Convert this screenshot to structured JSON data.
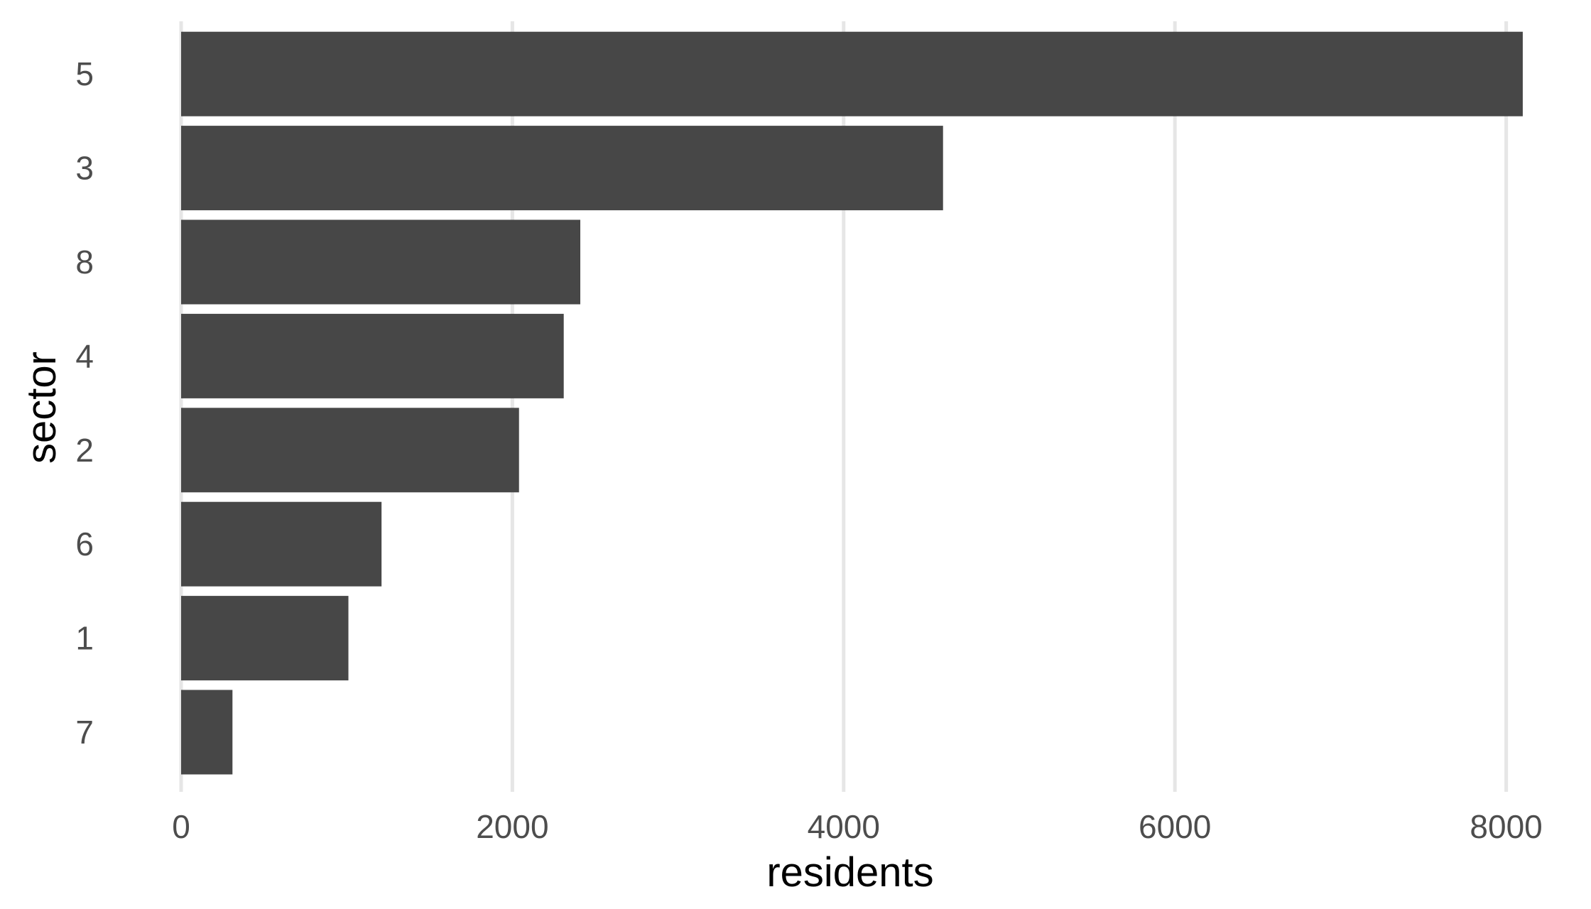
{
  "chart_data": {
    "type": "bar",
    "orientation": "horizontal",
    "categories": [
      "5",
      "3",
      "8",
      "4",
      "2",
      "6",
      "1",
      "7"
    ],
    "values": [
      8100,
      4600,
      2410,
      2310,
      2040,
      1210,
      1010,
      310
    ],
    "xlabel": "residents",
    "ylabel": "sector",
    "xlim": [
      0,
      8500
    ],
    "xticks": [
      0,
      2000,
      4000,
      6000,
      8000
    ],
    "xtick_labels": [
      "0",
      "2000",
      "4000",
      "6000",
      "8000"
    ],
    "grid": "vertical-major",
    "legend": "none",
    "colors": {
      "bar": "#474747",
      "grid": "#e6e6e6",
      "background": "#ffffff"
    }
  }
}
